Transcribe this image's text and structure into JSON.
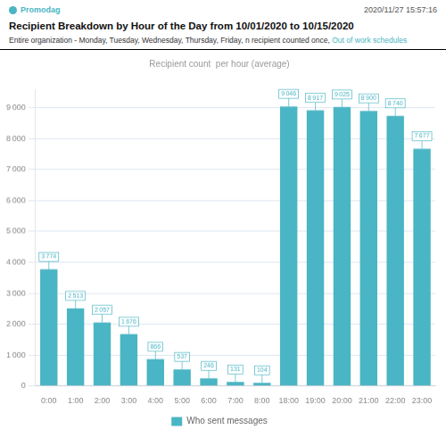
{
  "chart_data": {
    "type": "bar",
    "title": "Recipient Breakdown by Hour of the Day from 10/01/2020 to 10/15/2020",
    "subtitle": "Entire organization - Monday, Tuesday, Wednesday, Thursday, Friday, n recipient counted once, Out of work schedules",
    "annotations": [
      "Promodag",
      "2020/11/27 15:57:16"
    ],
    "y_label": "Recipient count  per hour (average)",
    "categories": [
      "0:00",
      "1:00",
      "2:00",
      "3:00",
      "4:00",
      "5:00",
      "6:00",
      "7:00",
      "8:00",
      "18:00",
      "19:00",
      "20:00",
      "21:00",
      "22:00",
      "23:00"
    ],
    "series": [
      {
        "name": "Who sent messages",
        "color": "#4ab5c4",
        "values": [
          3774,
          2513,
          2057,
          1676,
          866,
          537,
          246,
          131,
          104,
          9046,
          8917,
          9025,
          8900,
          8740,
          7677
        ],
        "value_labels": [
          "3 774",
          "2 513",
          "2 057",
          "1 676",
          "866",
          "537",
          "246",
          "131",
          "104",
          "9 046",
          "8 917",
          "9 025",
          "8 900",
          "8 740",
          "7 677"
        ]
      }
    ],
    "ylim": [
      0,
      9600
    ],
    "yticks": [
      0,
      {
        "value": 1000,
        "label": "1 000"
      },
      {
        "value": 2000,
        "label": "2 000"
      },
      {
        "value": 3000,
        "label": "3 000"
      },
      {
        "value": 4000,
        "label": "4 000"
      },
      {
        "value": 5000,
        "label": "5 000"
      },
      {
        "value": 6000,
        "label": "6 000"
      },
      {
        "value": 7000,
        "label": "7 000"
      },
      {
        "value": 8000,
        "label": "8 000"
      },
      {
        "value": 9000,
        "label": "9 000"
      }
    ],
    "grid": true,
    "legend": "bottom",
    "data_labels": true
  }
}
